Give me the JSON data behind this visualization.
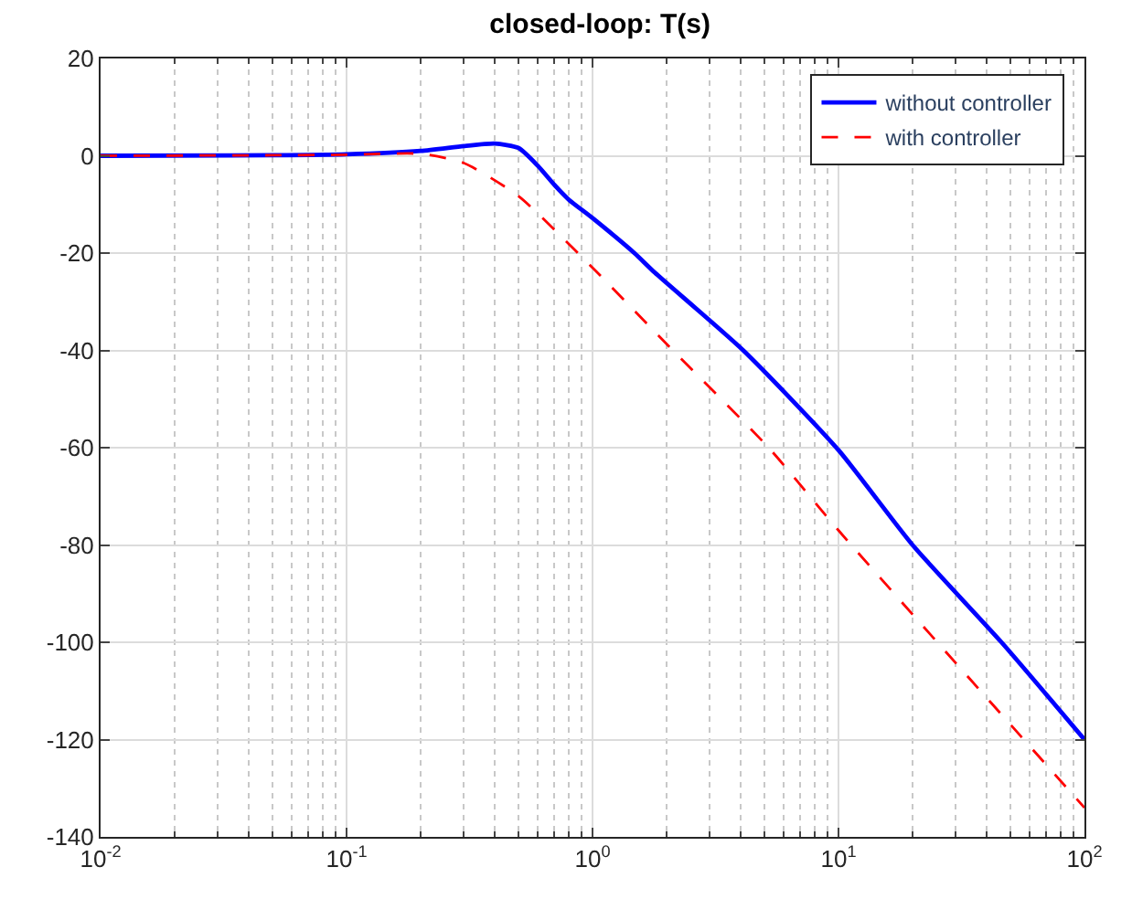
{
  "chart_data": {
    "type": "line",
    "title": "closed-loop: T(s)",
    "log": "x",
    "grid": true,
    "legend": "top right",
    "xlim": [
      0.01,
      100
    ],
    "xticks": [
      {
        "value": 0.01,
        "label": "10$^{-2}$"
      },
      {
        "value": 0.1,
        "label": "10$^{-1}$"
      },
      {
        "value": 1,
        "label": "10$^{0}$"
      },
      {
        "value": 10,
        "label": "10$^{1}$"
      },
      {
        "value": 100,
        "label": "10$^{2}$"
      }
    ],
    "ylim": [
      -140,
      20
    ],
    "yticks": [
      -140,
      -120,
      -100,
      -80,
      -60,
      -40,
      -20,
      0,
      20
    ],
    "series": [
      {
        "name": "without controller",
        "color": "#0000ff",
        "line_style": "solid",
        "x": [
          0.01,
          0.05,
          0.1,
          0.2,
          0.3,
          0.4,
          0.5,
          0.6,
          0.7,
          0.8,
          1,
          1.48,
          1.79,
          4.1,
          10,
          20,
          46,
          100
        ],
        "values": [
          0,
          0.1,
          0.3,
          1.0,
          2.0,
          2.5,
          1.6,
          -2.1,
          -6,
          -9,
          -12.8,
          -20,
          -24,
          -40,
          -60.5,
          -80,
          -100,
          -120
        ]
      },
      {
        "name": "with controller",
        "color": "#ff0000",
        "line_style": "dashed",
        "x": [
          0.01,
          0.05,
          0.1,
          0.2,
          0.3,
          0.5,
          1,
          2.12,
          5.2,
          10,
          100
        ],
        "values": [
          0,
          0.1,
          0.2,
          0.4,
          -1.5,
          -8.3,
          -23,
          -40,
          -60,
          -77,
          -134
        ]
      }
    ]
  }
}
